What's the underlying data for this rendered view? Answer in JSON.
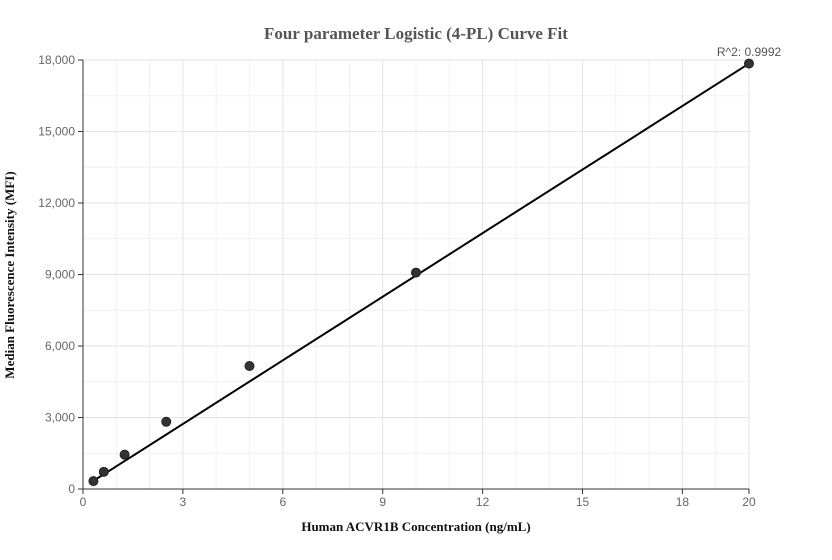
{
  "chart_data": {
    "type": "scatter",
    "title": "Four parameter Logistic (4-PL) Curve Fit",
    "xlabel": "Human ACVR1B Concentration (ng/mL)",
    "ylabel": "Median Fluorescence Intensity (MFI)",
    "xlim": [
      0,
      20
    ],
    "ylim": [
      0,
      18000
    ],
    "x_ticks": [
      0,
      3,
      6,
      9,
      12,
      15,
      18,
      20
    ],
    "x_tick_labels": [
      "0",
      "3",
      "6",
      "9",
      "12",
      "15",
      "18",
      "20"
    ],
    "y_ticks": [
      0,
      3000,
      6000,
      9000,
      12000,
      15000,
      18000
    ],
    "y_tick_labels": [
      "0",
      "3,000",
      "6,000",
      "9,000",
      "12,000",
      "15,000",
      "18,000"
    ],
    "grid": true,
    "points": {
      "x": [
        0.3125,
        0.625,
        1.25,
        2.5,
        5,
        10,
        20
      ],
      "y": [
        330,
        720,
        1440,
        2820,
        5160,
        9080,
        17850
      ]
    },
    "fit_curve": {
      "x": [
        0.3125,
        20
      ],
      "y": [
        340,
        17850
      ]
    },
    "annotation": "R^2: 0.9992",
    "colors": {
      "points": "#333333",
      "fit_line": "#000000",
      "grid": "#e3e3e3"
    }
  }
}
